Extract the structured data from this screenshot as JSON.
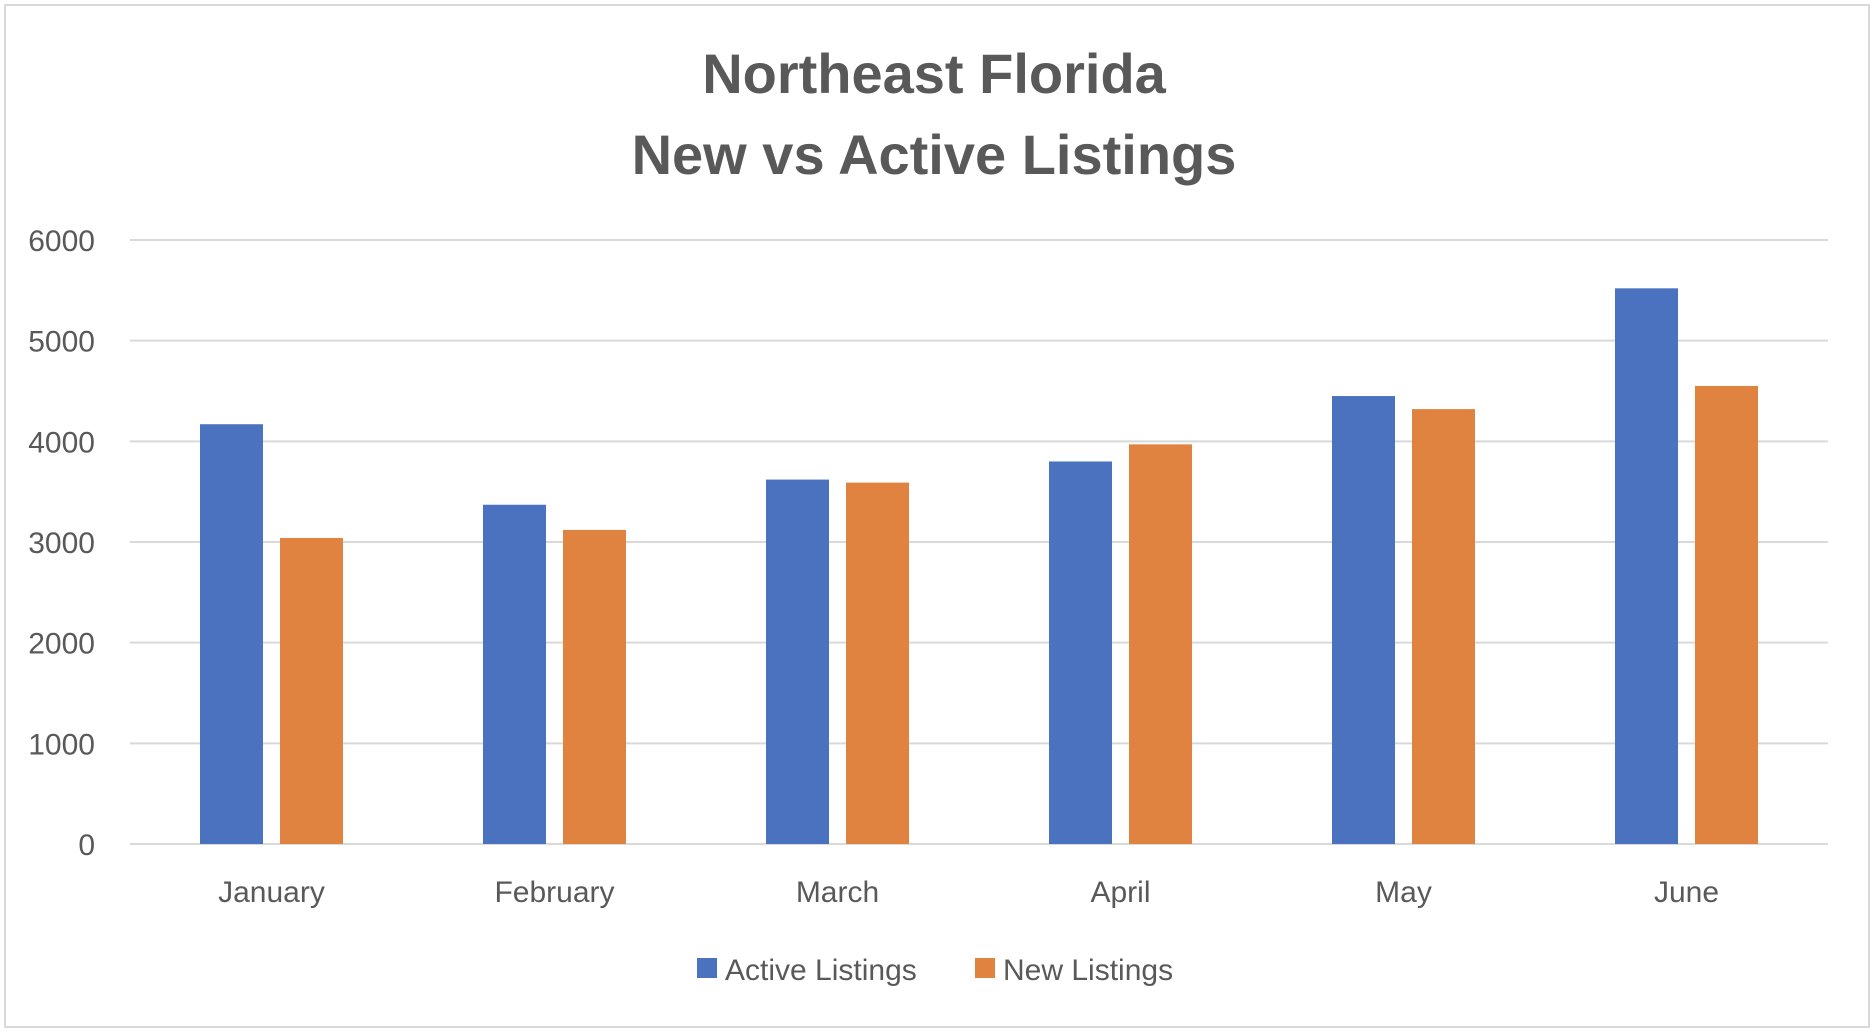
{
  "chart_data": {
    "type": "bar",
    "title_lines": [
      "Northeast Florida",
      "New vs Active Listings"
    ],
    "xlabel": "",
    "ylabel": "",
    "categories": [
      "January",
      "February",
      "March",
      "April",
      "May",
      "June"
    ],
    "series": [
      {
        "name": "Active Listings",
        "color": "#4a72be",
        "values": [
          4170,
          3370,
          3620,
          3800,
          4450,
          5520
        ]
      },
      {
        "name": "New Listings",
        "color": "#e08240",
        "values": [
          3040,
          3120,
          3590,
          3970,
          4320,
          4550
        ]
      }
    ],
    "ylim": [
      0,
      6000
    ],
    "yticks": [
      "0",
      "1000",
      "2000",
      "3000",
      "4000",
      "5000",
      "6000"
    ],
    "grid": true,
    "legend_position": "bottom"
  }
}
